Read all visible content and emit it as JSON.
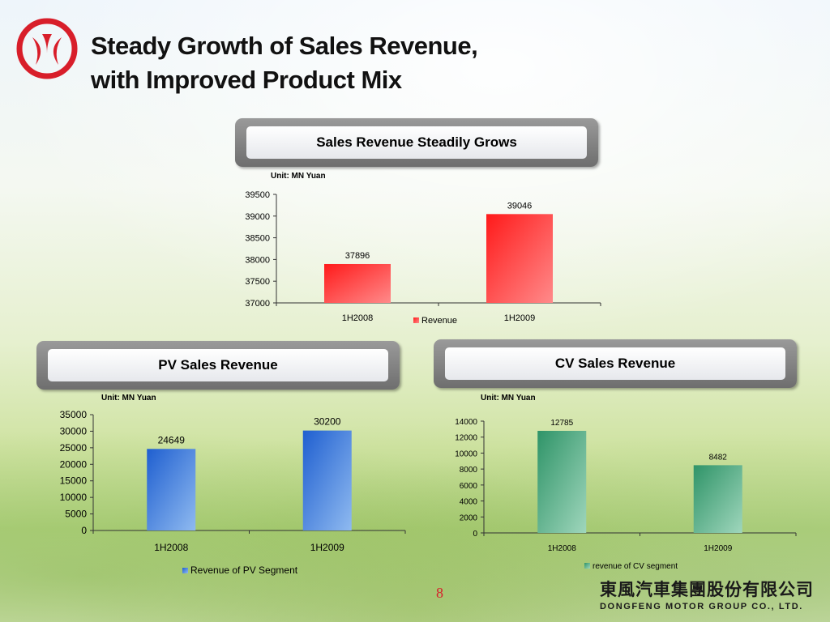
{
  "slide": {
    "title_line1": "Steady Growth of Sales Revenue,",
    "title_line2": "with Improved Product Mix",
    "page_number": "8",
    "company_cn": "東風汽車集團股份有限公司",
    "company_en": "DONGFENG MOTOR GROUP CO., LTD."
  },
  "banners": {
    "top": "Sales Revenue Steadily Grows",
    "pv": "PV Sales Revenue",
    "cv": "CV Sales Revenue"
  },
  "colors": {
    "brand_red": "#d81e2a",
    "revenue_bar": "#ff2a2a",
    "pv_bar": "#2f6fd6",
    "cv_bar": "#3aa074"
  },
  "chart_data": [
    {
      "id": "revenue",
      "type": "bar",
      "unit_label": "Unit: MN Yuan",
      "categories": [
        "1H2008",
        "1H2009"
      ],
      "series": [
        {
          "name": "Revenue",
          "values": [
            37896,
            39046
          ]
        }
      ],
      "ylim": [
        37000,
        39500
      ],
      "yticks": [
        37000,
        37500,
        38000,
        38500,
        39000,
        39500
      ],
      "data_labels": true,
      "legend": "bottom"
    },
    {
      "id": "pv",
      "type": "bar",
      "unit_label": "Unit: MN Yuan",
      "categories": [
        "1H2008",
        "1H2009"
      ],
      "series": [
        {
          "name": "Revenue of PV Segment",
          "values": [
            24649,
            30200
          ]
        }
      ],
      "ylim": [
        0,
        35000
      ],
      "yticks": [
        0,
        5000,
        10000,
        15000,
        20000,
        25000,
        30000,
        35000
      ],
      "data_labels": true,
      "legend": "bottom"
    },
    {
      "id": "cv",
      "type": "bar",
      "unit_label": "Unit: MN Yuan",
      "categories": [
        "1H2008",
        "1H2009"
      ],
      "series": [
        {
          "name": "revenue of CV segment",
          "values": [
            12785,
            8482
          ]
        }
      ],
      "ylim": [
        0,
        14000
      ],
      "yticks": [
        0,
        2000,
        4000,
        6000,
        8000,
        10000,
        12000,
        14000
      ],
      "data_labels": true,
      "legend": "bottom"
    }
  ]
}
